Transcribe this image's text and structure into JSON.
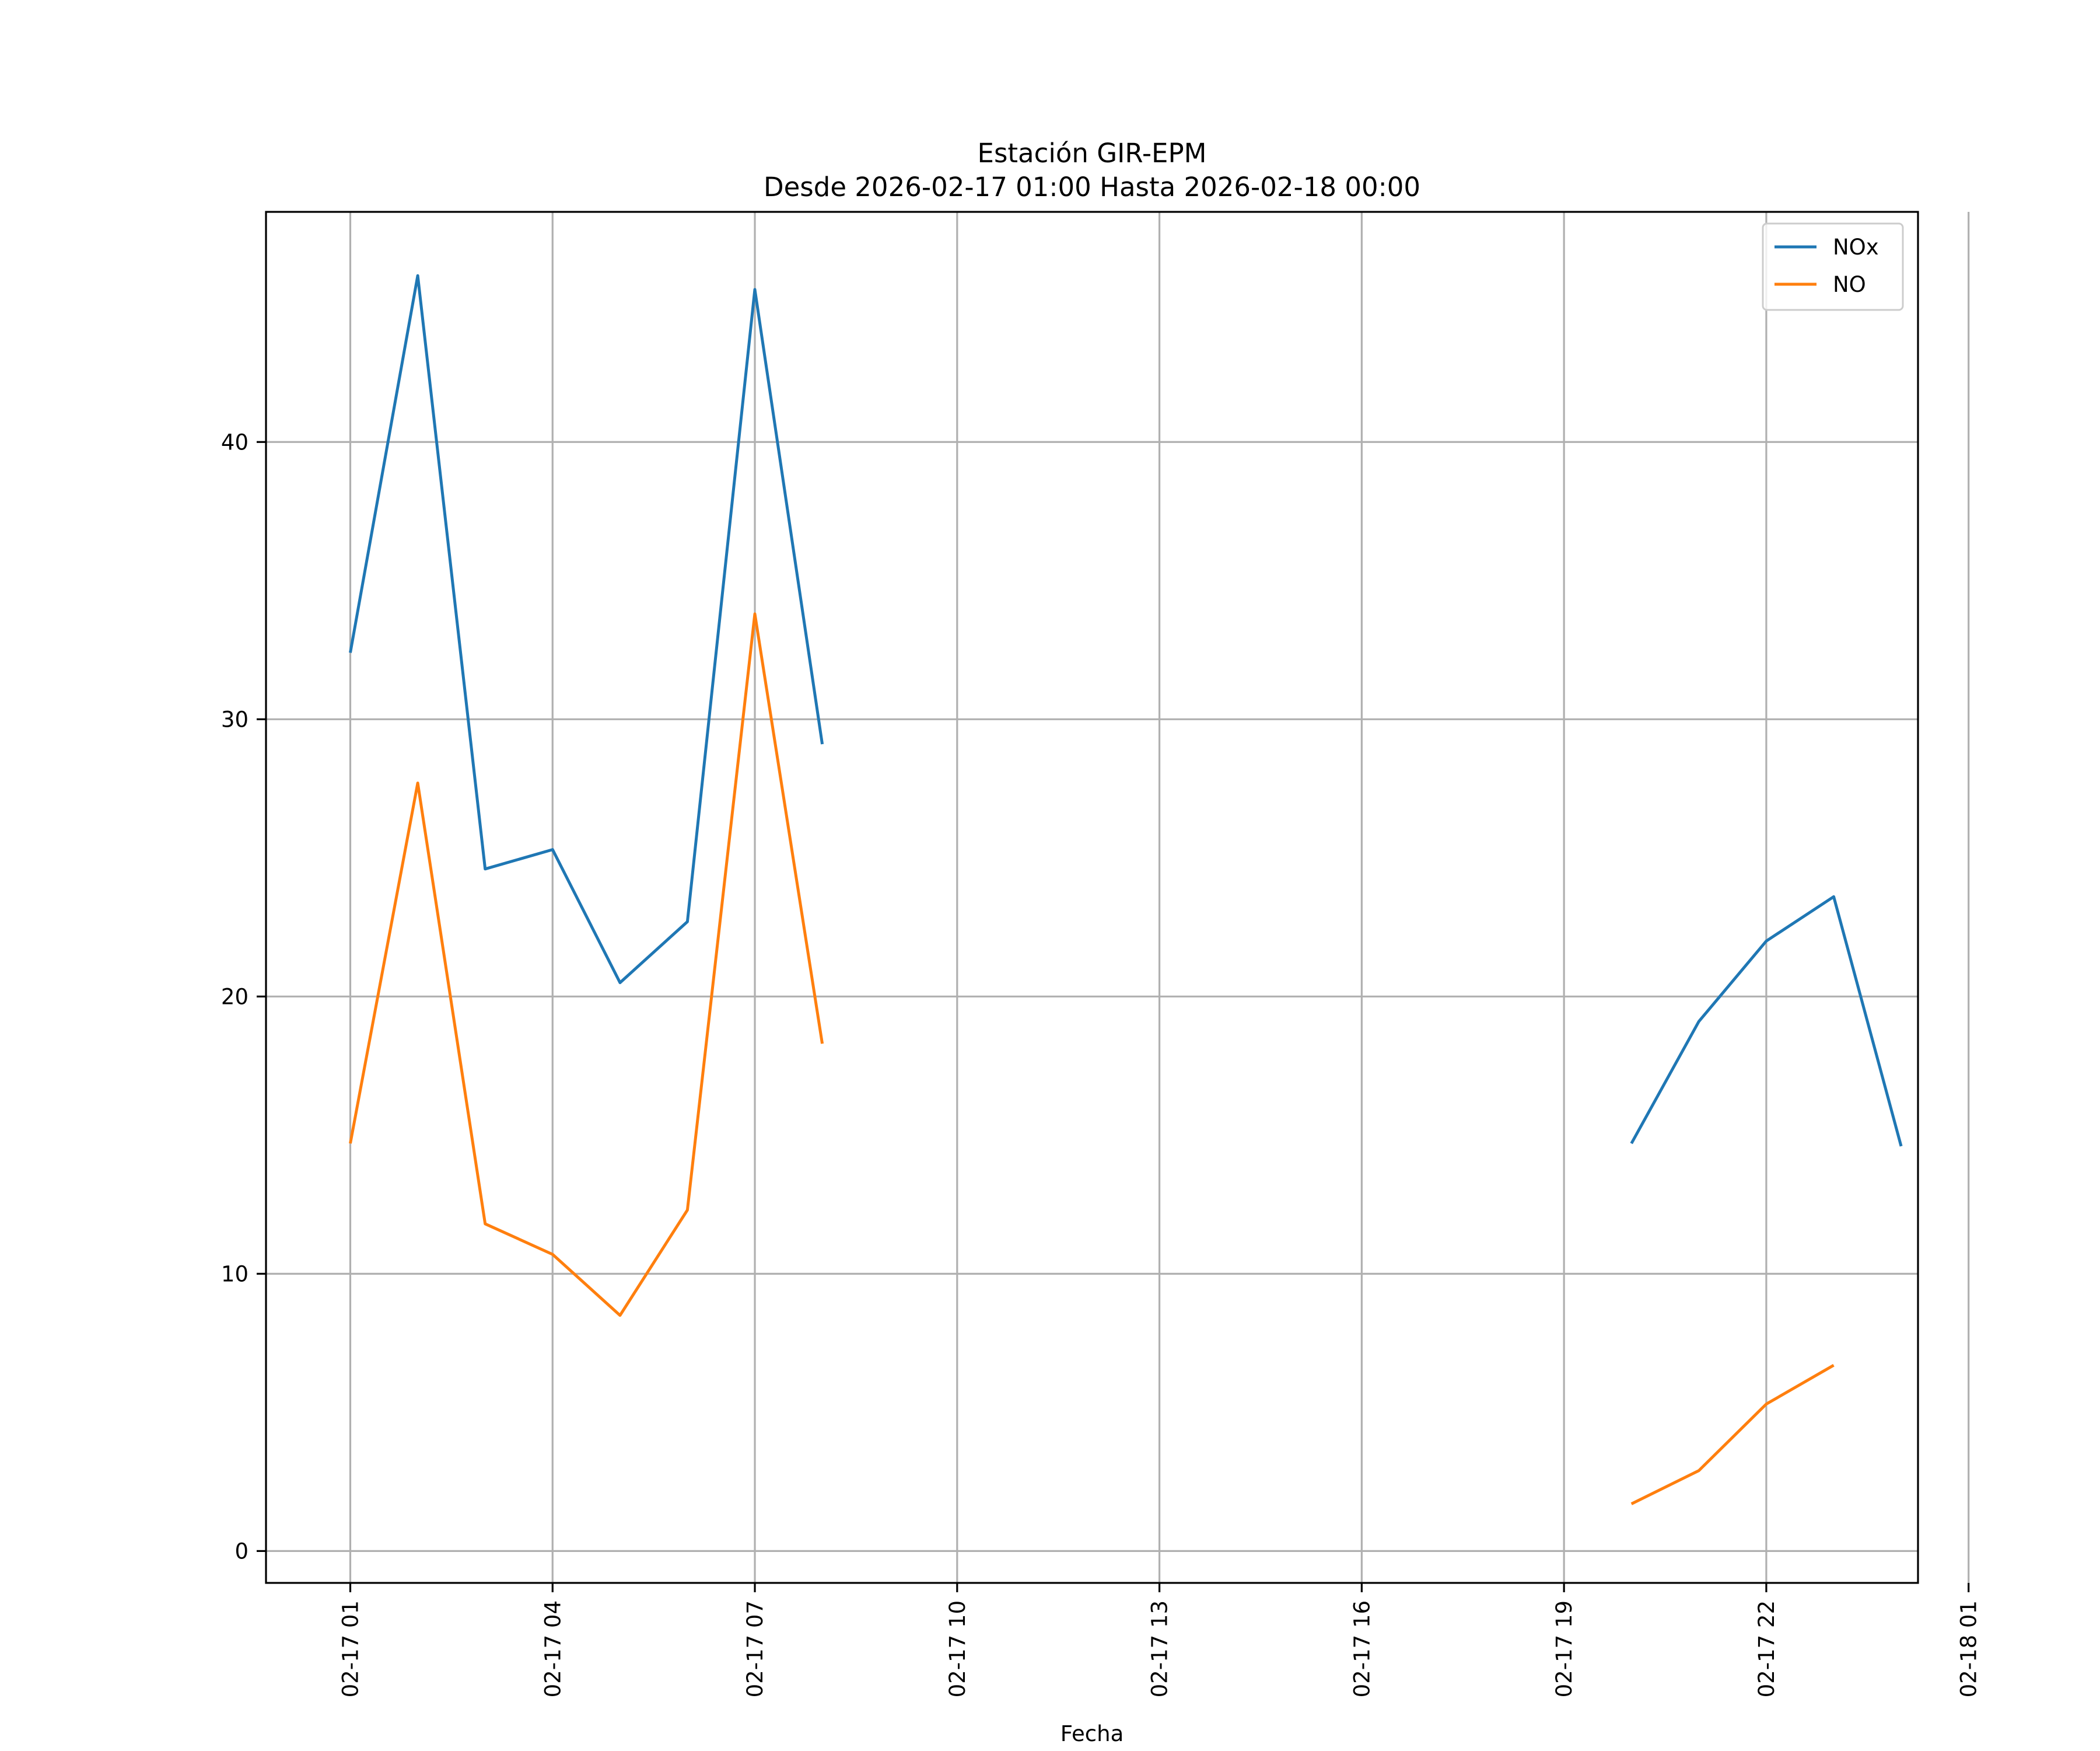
{
  "chart_data": {
    "type": "line",
    "title": "Estación GIR-EPM",
    "subtitle": "Desde 2026-02-17 01:00 Hasta 2026-02-18 00:00",
    "xlabel": "Fecha",
    "ylabel": "",
    "x_unit": "hour",
    "x": [
      "2026-02-17 01:00",
      "2026-02-17 02:00",
      "2026-02-17 03:00",
      "2026-02-17 04:00",
      "2026-02-17 05:00",
      "2026-02-17 06:00",
      "2026-02-17 07:00",
      "2026-02-17 08:00",
      "2026-02-17 09:00",
      "2026-02-17 10:00",
      "2026-02-17 11:00",
      "2026-02-17 12:00",
      "2026-02-17 13:00",
      "2026-02-17 14:00",
      "2026-02-17 15:00",
      "2026-02-17 16:00",
      "2026-02-17 17:00",
      "2026-02-17 18:00",
      "2026-02-17 19:00",
      "2026-02-17 20:00",
      "2026-02-17 21:00",
      "2026-02-17 22:00",
      "2026-02-17 23:00",
      "2026-02-18 00:00"
    ],
    "series": [
      {
        "name": "NOx",
        "color": "#1f77b4",
        "values": [
          32.4,
          46.0,
          24.6,
          25.3,
          20.5,
          22.7,
          45.5,
          29.1,
          null,
          null,
          null,
          null,
          null,
          null,
          null,
          null,
          null,
          null,
          null,
          14.7,
          19.1,
          22.0,
          23.6,
          14.6
        ]
      },
      {
        "name": "NO",
        "color": "#ff7f0e",
        "values": [
          14.7,
          27.7,
          11.8,
          10.7,
          8.5,
          12.3,
          33.8,
          18.3,
          null,
          null,
          null,
          null,
          null,
          null,
          null,
          null,
          null,
          null,
          null,
          1.7,
          2.9,
          5.3,
          6.7,
          null
        ]
      }
    ],
    "xlim": [
      "2026-02-16 23:45",
      "2026-02-18 00:15"
    ],
    "ylim": [
      -1.15,
      48.3
    ],
    "xticks": [
      "2026-02-17 01:00",
      "2026-02-17 04:00",
      "2026-02-17 07:00",
      "2026-02-17 10:00",
      "2026-02-17 13:00",
      "2026-02-17 16:00",
      "2026-02-17 19:00",
      "2026-02-17 22:00",
      "2026-02-18 01:00"
    ],
    "xtick_labels": [
      "02-17 01",
      "02-17 04",
      "02-17 07",
      "02-17 10",
      "02-17 13",
      "02-17 16",
      "02-17 19",
      "02-17 22",
      "02-18 01"
    ],
    "yticks": [
      0,
      10,
      20,
      30,
      40
    ],
    "ytick_labels": [
      "0",
      "10",
      "20",
      "30",
      "40"
    ],
    "grid": true,
    "legend": "top-right"
  }
}
